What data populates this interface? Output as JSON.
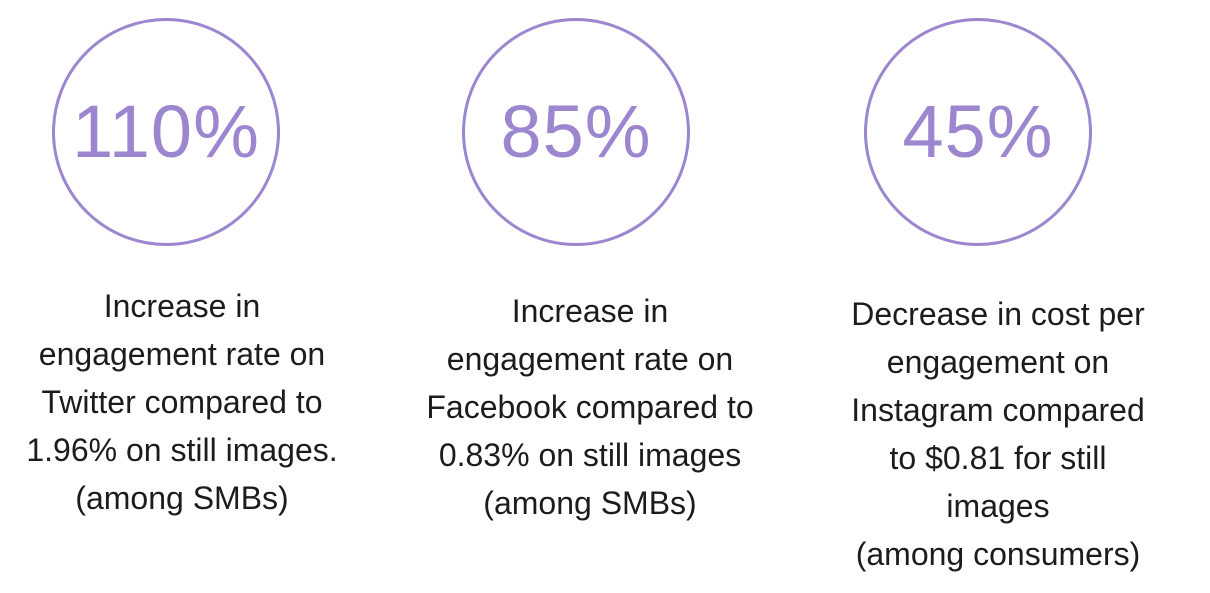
{
  "stats": [
    {
      "value": "110%",
      "lines": [
        "Increase in",
        "engagement rate on",
        "Twitter compared to",
        "1.96% on still images.",
        "(among SMBs)"
      ]
    },
    {
      "value": "85%",
      "lines": [
        "Increase in",
        "engagement rate on",
        "Facebook compared to",
        "0.83% on still images",
        "(among SMBs)"
      ]
    },
    {
      "value": "45%",
      "lines": [
        "Decrease in cost per",
        "engagement on",
        "Instagram compared",
        "to $0.81 for still",
        "images",
        "(among consumers)"
      ]
    }
  ],
  "colors": {
    "accent": "#9b86cf",
    "text": "#1c1c1c",
    "background": "#ffffff"
  }
}
